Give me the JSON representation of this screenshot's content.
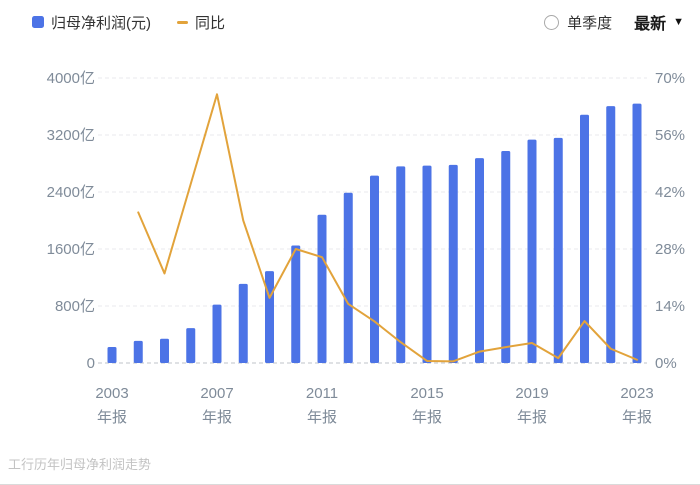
{
  "legend": {
    "bars_label": "归母净利润(元)",
    "line_label": "同比"
  },
  "controls": {
    "quarter_label": "单季度",
    "latest_label": "最新"
  },
  "footer": {
    "caption": "工行历年归母净利润走势"
  },
  "colors": {
    "bar": "#4c73e6",
    "line": "#e2a33b",
    "axis_text": "#7f8b99",
    "grid": "#e9eaec",
    "zero_line": "#bfc3c9"
  },
  "chart_data": {
    "type": "bar+line",
    "title": "工行历年归母净利润走势",
    "x": [
      2003,
      2004,
      2005,
      2006,
      2007,
      2008,
      2009,
      2010,
      2011,
      2012,
      2013,
      2014,
      2015,
      2016,
      2017,
      2018,
      2019,
      2020,
      2021,
      2022,
      2023
    ],
    "x_labeled_years": [
      2003,
      2007,
      2011,
      2015,
      2019,
      2023
    ],
    "x_tick_suffix": "年报",
    "series": [
      {
        "name": "归母净利润(元)",
        "type": "bar",
        "unit": "亿",
        "values": [
          225,
          310,
          340,
          490,
          820,
          1110,
          1290,
          1650,
          2080,
          2390,
          2630,
          2760,
          2770,
          2780,
          2875,
          2975,
          3135,
          3160,
          3485,
          3605,
          3640
        ]
      },
      {
        "name": "同比",
        "type": "line",
        "unit": "%",
        "values": [
          null,
          37,
          22,
          44,
          66,
          35,
          16,
          28,
          26,
          14.5,
          10.2,
          5.1,
          0.5,
          0.4,
          2.8,
          3.9,
          4.9,
          1.2,
          10.3,
          3.5,
          0.8
        ]
      }
    ],
    "y_left": {
      "ticks": [
        0,
        800,
        1600,
        2400,
        3200,
        4000
      ],
      "labels": [
        "0",
        "800亿",
        "1600亿",
        "2400亿",
        "3200亿",
        "4000亿"
      ],
      "max": 4000
    },
    "y_right": {
      "ticks": [
        0,
        14,
        28,
        42,
        56,
        70
      ],
      "labels": [
        "0%",
        "14%",
        "28%",
        "42%",
        "56%",
        "70%"
      ],
      "max": 70
    },
    "grid": "dashed-horizontal",
    "legend_position": "top-left"
  }
}
